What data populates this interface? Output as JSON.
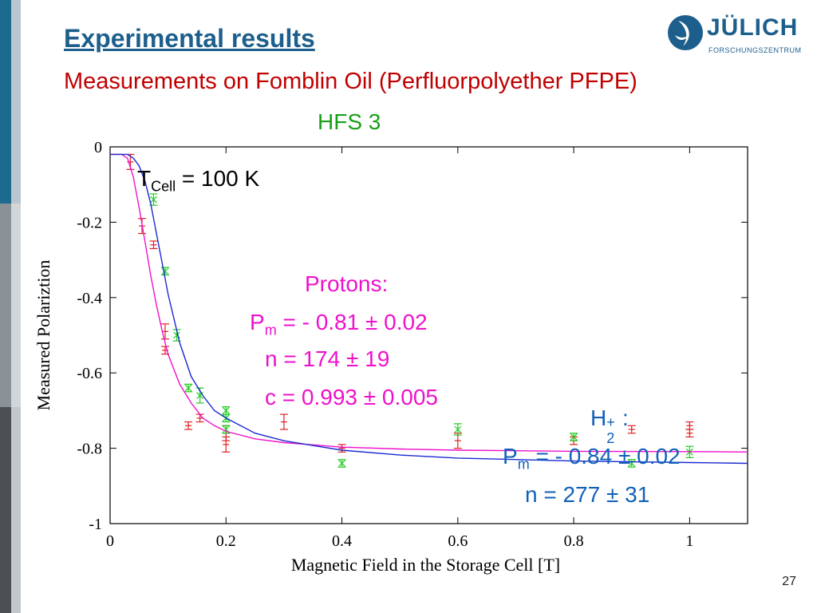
{
  "slide": {
    "title": "Experimental results",
    "subtitle": "Measurements on Fomblin Oil (Perfluorpolyether PFPE)",
    "hfs_label": "HFS 3",
    "page_number": "27"
  },
  "logo": {
    "name": "JÜLICH",
    "subtitle": "FORSCHUNGSZENTRUM"
  },
  "annotations": {
    "tcell_main": "T",
    "tcell_sub": "Cell",
    "tcell_value": " = 100 K",
    "protons_heading": "Protons:",
    "protons_pm_main": "P",
    "protons_pm_sub": "m",
    "protons_pm_value": " = - 0.81 ± 0.02",
    "protons_n": "n = 174 ± 19",
    "protons_c": "c = 0.993 ± 0.005",
    "h2_main": "H",
    "h2_sub": "2",
    "h2_sup": "+",
    "h2_colon": " :",
    "h2_pm_main": "P",
    "h2_pm_sub": "m",
    "h2_pm_value": " = - 0.84 ± 0.02",
    "h2_n": "n = 277 ± 31"
  },
  "colors": {
    "protons": "#ee11cc",
    "h2": "#1160b8",
    "red_points": "#e02020",
    "green_points": "#22cc22"
  },
  "chart_data": {
    "type": "scatter",
    "xlabel": "Magnetic Field in the Storage Cell [T]",
    "ylabel": "Measured Polariztion",
    "xlim": [
      0,
      1.1
    ],
    "ylim": [
      -1,
      0
    ],
    "x_ticks": [
      0,
      0.2,
      0.4,
      0.6,
      0.8,
      1
    ],
    "x_tick_labels": [
      "0",
      "0.2",
      "0.4",
      "0.6",
      "0.8",
      "1"
    ],
    "y_ticks": [
      -1,
      -0.8,
      -0.6,
      -0.4,
      -0.2,
      0
    ],
    "y_tick_labels": [
      "-1",
      "-0.8",
      "-0.6",
      "-0.4",
      "-0.2",
      "0"
    ],
    "series": [
      {
        "marker": "errorbar",
        "color": "#e02020",
        "points": [
          {
            "x": 0.035,
            "y": -0.04,
            "err": 0.02
          },
          {
            "x": 0.055,
            "y": -0.21,
            "err": 0.02
          },
          {
            "x": 0.075,
            "y": -0.26,
            "err": 0.01
          },
          {
            "x": 0.095,
            "y": -0.49,
            "err": 0.02
          },
          {
            "x": 0.095,
            "y": -0.54,
            "err": 0.01
          },
          {
            "x": 0.135,
            "y": -0.74,
            "err": 0.01
          },
          {
            "x": 0.155,
            "y": -0.72,
            "err": 0.01
          },
          {
            "x": 0.2,
            "y": -0.79,
            "err": 0.02
          },
          {
            "x": 0.2,
            "y": -0.76,
            "err": 0.02
          },
          {
            "x": 0.3,
            "y": -0.73,
            "err": 0.02
          },
          {
            "x": 0.4,
            "y": -0.8,
            "err": 0.01
          },
          {
            "x": 0.6,
            "y": -0.78,
            "err": 0.02
          },
          {
            "x": 0.8,
            "y": -0.78,
            "err": 0.01
          },
          {
            "x": 0.9,
            "y": -0.75,
            "err": 0.01
          },
          {
            "x": 1.0,
            "y": -0.76,
            "err": 0.01
          },
          {
            "x": 1.0,
            "y": -0.74,
            "err": 0.01
          }
        ]
      },
      {
        "marker": "errorbar-x",
        "color": "#22cc22",
        "points": [
          {
            "x": 0.075,
            "y": -0.14,
            "err": 0.015
          },
          {
            "x": 0.095,
            "y": -0.33,
            "err": 0.01
          },
          {
            "x": 0.115,
            "y": -0.5,
            "err": 0.015
          },
          {
            "x": 0.135,
            "y": -0.64,
            "err": 0.01
          },
          {
            "x": 0.155,
            "y": -0.66,
            "err": 0.02
          },
          {
            "x": 0.2,
            "y": -0.7,
            "err": 0.01
          },
          {
            "x": 0.2,
            "y": -0.72,
            "err": 0.01
          },
          {
            "x": 0.2,
            "y": -0.75,
            "err": 0.01
          },
          {
            "x": 0.4,
            "y": -0.84,
            "err": 0.01
          },
          {
            "x": 0.6,
            "y": -0.75,
            "err": 0.015
          },
          {
            "x": 0.8,
            "y": -0.77,
            "err": 0.01
          },
          {
            "x": 0.9,
            "y": -0.84,
            "err": 0.01
          },
          {
            "x": 1.0,
            "y": -0.81,
            "err": 0.015
          }
        ]
      },
      {
        "marker": "line",
        "color": "#ee11cc",
        "points": [
          {
            "x": 0.0,
            "y": -0.02
          },
          {
            "x": 0.02,
            "y": -0.02
          },
          {
            "x": 0.03,
            "y": -0.03
          },
          {
            "x": 0.04,
            "y": -0.08
          },
          {
            "x": 0.05,
            "y": -0.16
          },
          {
            "x": 0.06,
            "y": -0.25
          },
          {
            "x": 0.07,
            "y": -0.34
          },
          {
            "x": 0.08,
            "y": -0.42
          },
          {
            "x": 0.09,
            "y": -0.49
          },
          {
            "x": 0.1,
            "y": -0.55
          },
          {
            "x": 0.12,
            "y": -0.63
          },
          {
            "x": 0.14,
            "y": -0.68
          },
          {
            "x": 0.16,
            "y": -0.72
          },
          {
            "x": 0.18,
            "y": -0.74
          },
          {
            "x": 0.2,
            "y": -0.755
          },
          {
            "x": 0.25,
            "y": -0.775
          },
          {
            "x": 0.3,
            "y": -0.785
          },
          {
            "x": 0.4,
            "y": -0.797
          },
          {
            "x": 0.5,
            "y": -0.802
          },
          {
            "x": 0.6,
            "y": -0.805
          },
          {
            "x": 0.8,
            "y": -0.808
          },
          {
            "x": 1.0,
            "y": -0.809
          },
          {
            "x": 1.1,
            "y": -0.81
          }
        ]
      },
      {
        "marker": "line",
        "color": "#1a2ad0",
        "points": [
          {
            "x": 0.0,
            "y": -0.02
          },
          {
            "x": 0.03,
            "y": -0.02
          },
          {
            "x": 0.04,
            "y": -0.03
          },
          {
            "x": 0.05,
            "y": -0.05
          },
          {
            "x": 0.06,
            "y": -0.09
          },
          {
            "x": 0.07,
            "y": -0.15
          },
          {
            "x": 0.08,
            "y": -0.23
          },
          {
            "x": 0.09,
            "y": -0.31
          },
          {
            "x": 0.1,
            "y": -0.39
          },
          {
            "x": 0.12,
            "y": -0.52
          },
          {
            "x": 0.14,
            "y": -0.61
          },
          {
            "x": 0.16,
            "y": -0.66
          },
          {
            "x": 0.18,
            "y": -0.7
          },
          {
            "x": 0.2,
            "y": -0.72
          },
          {
            "x": 0.25,
            "y": -0.76
          },
          {
            "x": 0.3,
            "y": -0.78
          },
          {
            "x": 0.4,
            "y": -0.805
          },
          {
            "x": 0.5,
            "y": -0.818
          },
          {
            "x": 0.6,
            "y": -0.826
          },
          {
            "x": 0.8,
            "y": -0.834
          },
          {
            "x": 1.0,
            "y": -0.838
          },
          {
            "x": 1.1,
            "y": -0.84
          }
        ]
      }
    ]
  }
}
